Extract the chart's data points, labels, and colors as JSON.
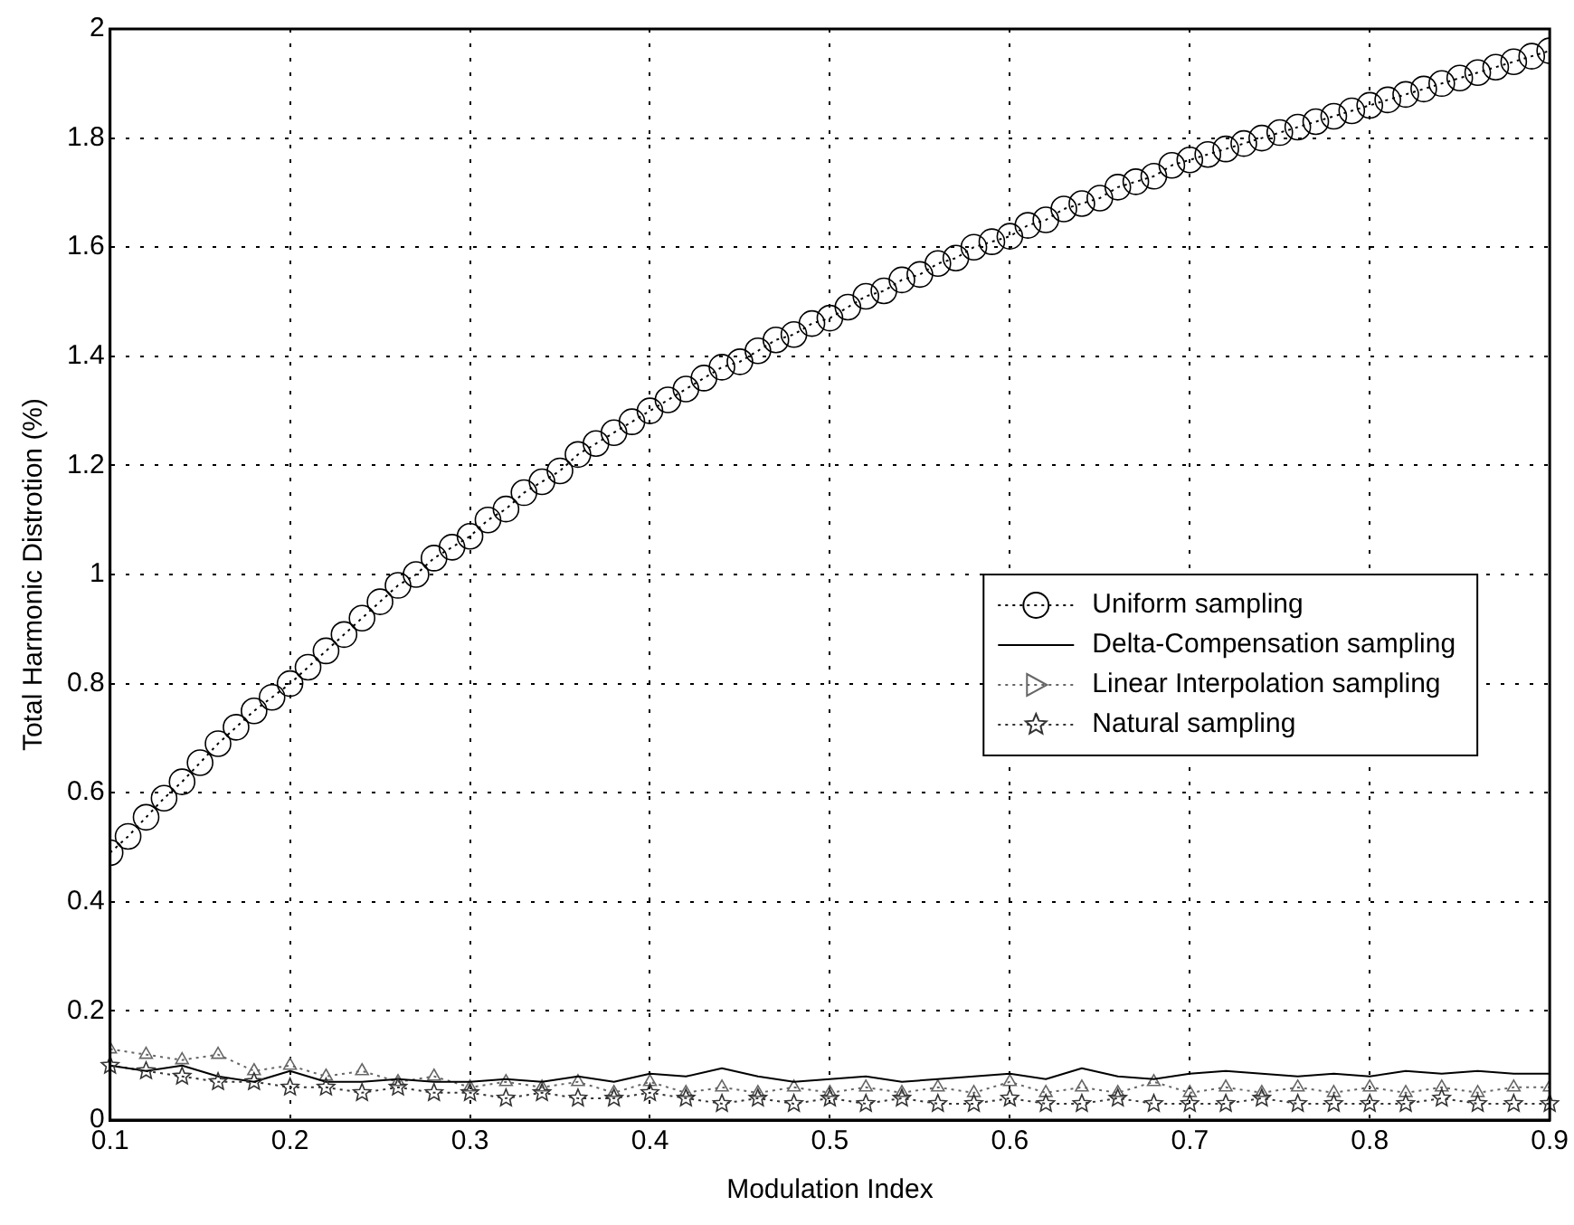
{
  "chart_data": {
    "type": "line",
    "xlabel": "Modulation Index",
    "ylabel": "Total Harmonic Distrotion (%)",
    "xlim": [
      0.1,
      0.9
    ],
    "xticks": [
      0.1,
      0.2,
      0.3,
      0.4,
      0.5,
      0.6,
      0.7,
      0.8,
      0.9
    ],
    "ylim": [
      0,
      2
    ],
    "yticks": [
      0,
      0.2,
      0.4,
      0.6,
      0.8,
      1,
      1.2,
      1.4,
      1.6,
      1.8,
      2
    ],
    "grid": true,
    "legend": "center right",
    "series": [
      {
        "name": "Uniform sampling",
        "color": "#000000",
        "marker": "circle",
        "line_style": "dotted",
        "x": [
          0.1,
          0.11,
          0.12,
          0.13,
          0.14,
          0.15,
          0.16,
          0.17,
          0.18,
          0.19,
          0.2,
          0.21,
          0.22,
          0.23,
          0.24,
          0.25,
          0.26,
          0.27,
          0.28,
          0.29,
          0.3,
          0.31,
          0.32,
          0.33,
          0.34,
          0.35,
          0.36,
          0.37,
          0.38,
          0.39,
          0.4,
          0.41,
          0.42,
          0.43,
          0.44,
          0.45,
          0.46,
          0.47,
          0.48,
          0.49,
          0.5,
          0.51,
          0.52,
          0.53,
          0.54,
          0.55,
          0.56,
          0.57,
          0.58,
          0.59,
          0.6,
          0.61,
          0.62,
          0.63,
          0.64,
          0.65,
          0.66,
          0.67,
          0.68,
          0.69,
          0.7,
          0.71,
          0.72,
          0.73,
          0.74,
          0.75,
          0.76,
          0.77,
          0.78,
          0.79,
          0.8,
          0.81,
          0.82,
          0.83,
          0.84,
          0.85,
          0.86,
          0.87,
          0.88,
          0.89,
          0.9
        ],
        "values": [
          0.49,
          0.52,
          0.555,
          0.59,
          0.62,
          0.655,
          0.69,
          0.72,
          0.75,
          0.775,
          0.8,
          0.83,
          0.86,
          0.89,
          0.92,
          0.95,
          0.98,
          1.0,
          1.03,
          1.05,
          1.07,
          1.1,
          1.12,
          1.15,
          1.17,
          1.19,
          1.22,
          1.24,
          1.26,
          1.28,
          1.3,
          1.32,
          1.34,
          1.36,
          1.38,
          1.39,
          1.41,
          1.43,
          1.44,
          1.46,
          1.47,
          1.49,
          1.51,
          1.52,
          1.54,
          1.55,
          1.57,
          1.58,
          1.6,
          1.61,
          1.62,
          1.64,
          1.65,
          1.67,
          1.68,
          1.69,
          1.71,
          1.72,
          1.73,
          1.75,
          1.76,
          1.77,
          1.78,
          1.79,
          1.8,
          1.81,
          1.82,
          1.83,
          1.84,
          1.85,
          1.86,
          1.87,
          1.88,
          1.89,
          1.9,
          1.91,
          1.92,
          1.93,
          1.94,
          1.95,
          1.96
        ]
      },
      {
        "name": "Delta-Compensation sampling",
        "color": "#000000",
        "marker": "none",
        "line_style": "solid",
        "x": [
          0.1,
          0.12,
          0.14,
          0.16,
          0.18,
          0.2,
          0.22,
          0.24,
          0.26,
          0.28,
          0.3,
          0.32,
          0.34,
          0.36,
          0.38,
          0.4,
          0.42,
          0.44,
          0.46,
          0.48,
          0.5,
          0.52,
          0.54,
          0.56,
          0.58,
          0.6,
          0.62,
          0.64,
          0.66,
          0.68,
          0.7,
          0.72,
          0.74,
          0.76,
          0.78,
          0.8,
          0.82,
          0.84,
          0.86,
          0.88,
          0.9
        ],
        "values": [
          0.1,
          0.09,
          0.1,
          0.08,
          0.07,
          0.09,
          0.07,
          0.07,
          0.075,
          0.07,
          0.07,
          0.075,
          0.07,
          0.08,
          0.07,
          0.085,
          0.08,
          0.095,
          0.08,
          0.07,
          0.075,
          0.08,
          0.07,
          0.075,
          0.08,
          0.085,
          0.075,
          0.095,
          0.08,
          0.075,
          0.085,
          0.09,
          0.085,
          0.08,
          0.085,
          0.08,
          0.09,
          0.085,
          0.09,
          0.085,
          0.085
        ]
      },
      {
        "name": "Linear Interpolation sampling",
        "color": "#666666",
        "marker": "triangle",
        "line_style": "dotted",
        "x": [
          0.1,
          0.12,
          0.14,
          0.16,
          0.18,
          0.2,
          0.22,
          0.24,
          0.26,
          0.28,
          0.3,
          0.32,
          0.34,
          0.36,
          0.38,
          0.4,
          0.42,
          0.44,
          0.46,
          0.48,
          0.5,
          0.52,
          0.54,
          0.56,
          0.58,
          0.6,
          0.62,
          0.64,
          0.66,
          0.68,
          0.7,
          0.72,
          0.74,
          0.76,
          0.78,
          0.8,
          0.82,
          0.84,
          0.86,
          0.88,
          0.9
        ],
        "values": [
          0.13,
          0.12,
          0.11,
          0.12,
          0.09,
          0.1,
          0.08,
          0.09,
          0.07,
          0.08,
          0.06,
          0.07,
          0.06,
          0.07,
          0.05,
          0.07,
          0.05,
          0.06,
          0.05,
          0.06,
          0.05,
          0.06,
          0.05,
          0.06,
          0.05,
          0.07,
          0.05,
          0.06,
          0.05,
          0.07,
          0.05,
          0.06,
          0.05,
          0.06,
          0.05,
          0.06,
          0.05,
          0.06,
          0.05,
          0.06,
          0.06
        ]
      },
      {
        "name": "Natural sampling",
        "color": "#333333",
        "marker": "star",
        "line_style": "dotted",
        "x": [
          0.1,
          0.12,
          0.14,
          0.16,
          0.18,
          0.2,
          0.22,
          0.24,
          0.26,
          0.28,
          0.3,
          0.32,
          0.34,
          0.36,
          0.38,
          0.4,
          0.42,
          0.44,
          0.46,
          0.48,
          0.5,
          0.52,
          0.54,
          0.56,
          0.58,
          0.6,
          0.62,
          0.64,
          0.66,
          0.68,
          0.7,
          0.72,
          0.74,
          0.76,
          0.78,
          0.8,
          0.82,
          0.84,
          0.86,
          0.88,
          0.9
        ],
        "values": [
          0.1,
          0.09,
          0.08,
          0.07,
          0.07,
          0.06,
          0.06,
          0.05,
          0.06,
          0.05,
          0.05,
          0.04,
          0.05,
          0.04,
          0.04,
          0.05,
          0.04,
          0.03,
          0.04,
          0.03,
          0.04,
          0.03,
          0.04,
          0.03,
          0.03,
          0.04,
          0.03,
          0.03,
          0.04,
          0.03,
          0.03,
          0.03,
          0.04,
          0.03,
          0.03,
          0.03,
          0.03,
          0.04,
          0.03,
          0.03,
          0.03
        ]
      }
    ]
  }
}
